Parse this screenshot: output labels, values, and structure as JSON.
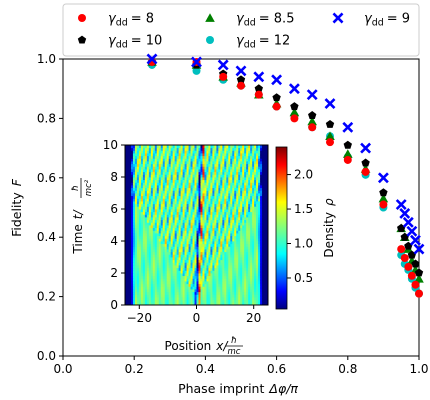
{
  "chart_data": [
    {
      "type": "scatter",
      "xlabel": "Phase imprint",
      "xlabel_math": "Δφ/π",
      "ylabel": "Fidelity",
      "ylabel_math": "F",
      "xlim": [
        0.0,
        1.0
      ],
      "ylim": [
        0.0,
        1.0
      ],
      "xticks": [
        "0.0",
        "0.2",
        "0.4",
        "0.6",
        "0.8",
        "1.0"
      ],
      "yticks": [
        "0.0",
        "0.2",
        "0.4",
        "0.6",
        "0.8",
        "1.0"
      ],
      "grid": false,
      "legend": {
        "placement": "top, above axes",
        "columns": 3
      },
      "series": [
        {
          "name": "γdd = 8",
          "sym": "γ",
          "sub": "dd",
          "val": "= 8",
          "marker": "circle",
          "color": "#ff0000",
          "x": [
            0.25,
            0.375,
            0.45,
            0.5,
            0.55,
            0.6,
            0.65,
            0.7,
            0.75,
            0.8,
            0.85,
            0.9,
            0.95,
            0.96,
            0.97,
            0.98,
            0.99,
            1.0
          ],
          "y": [
            0.99,
            0.99,
            0.94,
            0.91,
            0.88,
            0.84,
            0.8,
            0.77,
            0.72,
            0.66,
            0.62,
            0.51,
            0.36,
            0.33,
            0.3,
            0.27,
            0.24,
            0.21
          ]
        },
        {
          "name": "γdd = 8.5",
          "sym": "γ",
          "sub": "dd",
          "val": "= 8.5",
          "marker": "triangle",
          "color": "#008000",
          "x": [
            0.25,
            0.375,
            0.45,
            0.5,
            0.55,
            0.6,
            0.65,
            0.7,
            0.75,
            0.8,
            0.85,
            0.9,
            0.95,
            0.96,
            0.97,
            0.98,
            0.99,
            1.0
          ],
          "y": [
            0.99,
            0.98,
            0.94,
            0.92,
            0.88,
            0.85,
            0.82,
            0.79,
            0.74,
            0.68,
            0.63,
            0.53,
            0.43,
            0.4,
            0.36,
            0.32,
            0.29,
            0.26
          ]
        },
        {
          "name": "γdd = 9",
          "sym": "γ",
          "sub": "dd",
          "val": "= 9",
          "marker": "x",
          "color": "#0000ff",
          "x": [
            0.25,
            0.375,
            0.45,
            0.5,
            0.55,
            0.6,
            0.65,
            0.7,
            0.75,
            0.8,
            0.85,
            0.9,
            0.95,
            0.96,
            0.97,
            0.98,
            0.99,
            1.0
          ],
          "y": [
            1.0,
            0.99,
            0.98,
            0.96,
            0.94,
            0.93,
            0.9,
            0.88,
            0.85,
            0.77,
            0.7,
            0.6,
            0.51,
            0.48,
            0.45,
            0.42,
            0.39,
            0.36
          ]
        },
        {
          "name": "γdd = 10",
          "sym": "γ",
          "sub": "dd",
          "val": "= 10",
          "marker": "pentagon",
          "color": "#000000",
          "x": [
            0.25,
            0.375,
            0.45,
            0.5,
            0.55,
            0.6,
            0.65,
            0.7,
            0.75,
            0.8,
            0.85,
            0.9,
            0.95,
            0.96,
            0.97,
            0.98,
            0.99,
            1.0
          ],
          "y": [
            0.99,
            0.98,
            0.95,
            0.93,
            0.9,
            0.87,
            0.84,
            0.81,
            0.78,
            0.71,
            0.65,
            0.55,
            0.43,
            0.4,
            0.37,
            0.34,
            0.31,
            0.28
          ]
        },
        {
          "name": "γdd = 12",
          "sym": "γ",
          "sub": "dd",
          "val": "= 12",
          "marker": "circle",
          "color": "#00bfbf",
          "x": [
            0.25,
            0.375,
            0.45,
            0.5,
            0.55,
            0.6,
            0.65,
            0.7,
            0.75,
            0.8,
            0.85,
            0.9,
            0.95,
            0.96,
            0.97,
            0.98,
            0.99,
            1.0
          ],
          "y": [
            0.98,
            0.96,
            0.93,
            0.91,
            0.88,
            0.84,
            0.81,
            0.77,
            0.74,
            0.67,
            0.61,
            0.5,
            0.34,
            0.31,
            0.29,
            0.26,
            0.23,
            0.21
          ]
        }
      ]
    },
    {
      "type": "heatmap",
      "role": "inset",
      "xlabel": "Position",
      "ylabel": "Time",
      "xlim": [
        -25,
        25
      ],
      "ylim": [
        0,
        10
      ],
      "xticks": [
        "−20",
        "0",
        "20"
      ],
      "yticks": [
        "0",
        "2",
        "4",
        "6",
        "8",
        "10"
      ],
      "colorbar": {
        "label": "Density",
        "ticks": [
          "0.5",
          "1.0",
          "1.5",
          "2.0"
        ],
        "range": [
          0.05,
          2.4
        ],
        "colormap": "jet"
      },
      "dark_soliton": {
        "x0": 0,
        "t0": 0.5,
        "speed_per_unit_time": 0.18
      },
      "grey_solitons": {
        "x0": 0,
        "t0": 0.5,
        "speed_per_unit_time": 3.6
      }
    }
  ]
}
